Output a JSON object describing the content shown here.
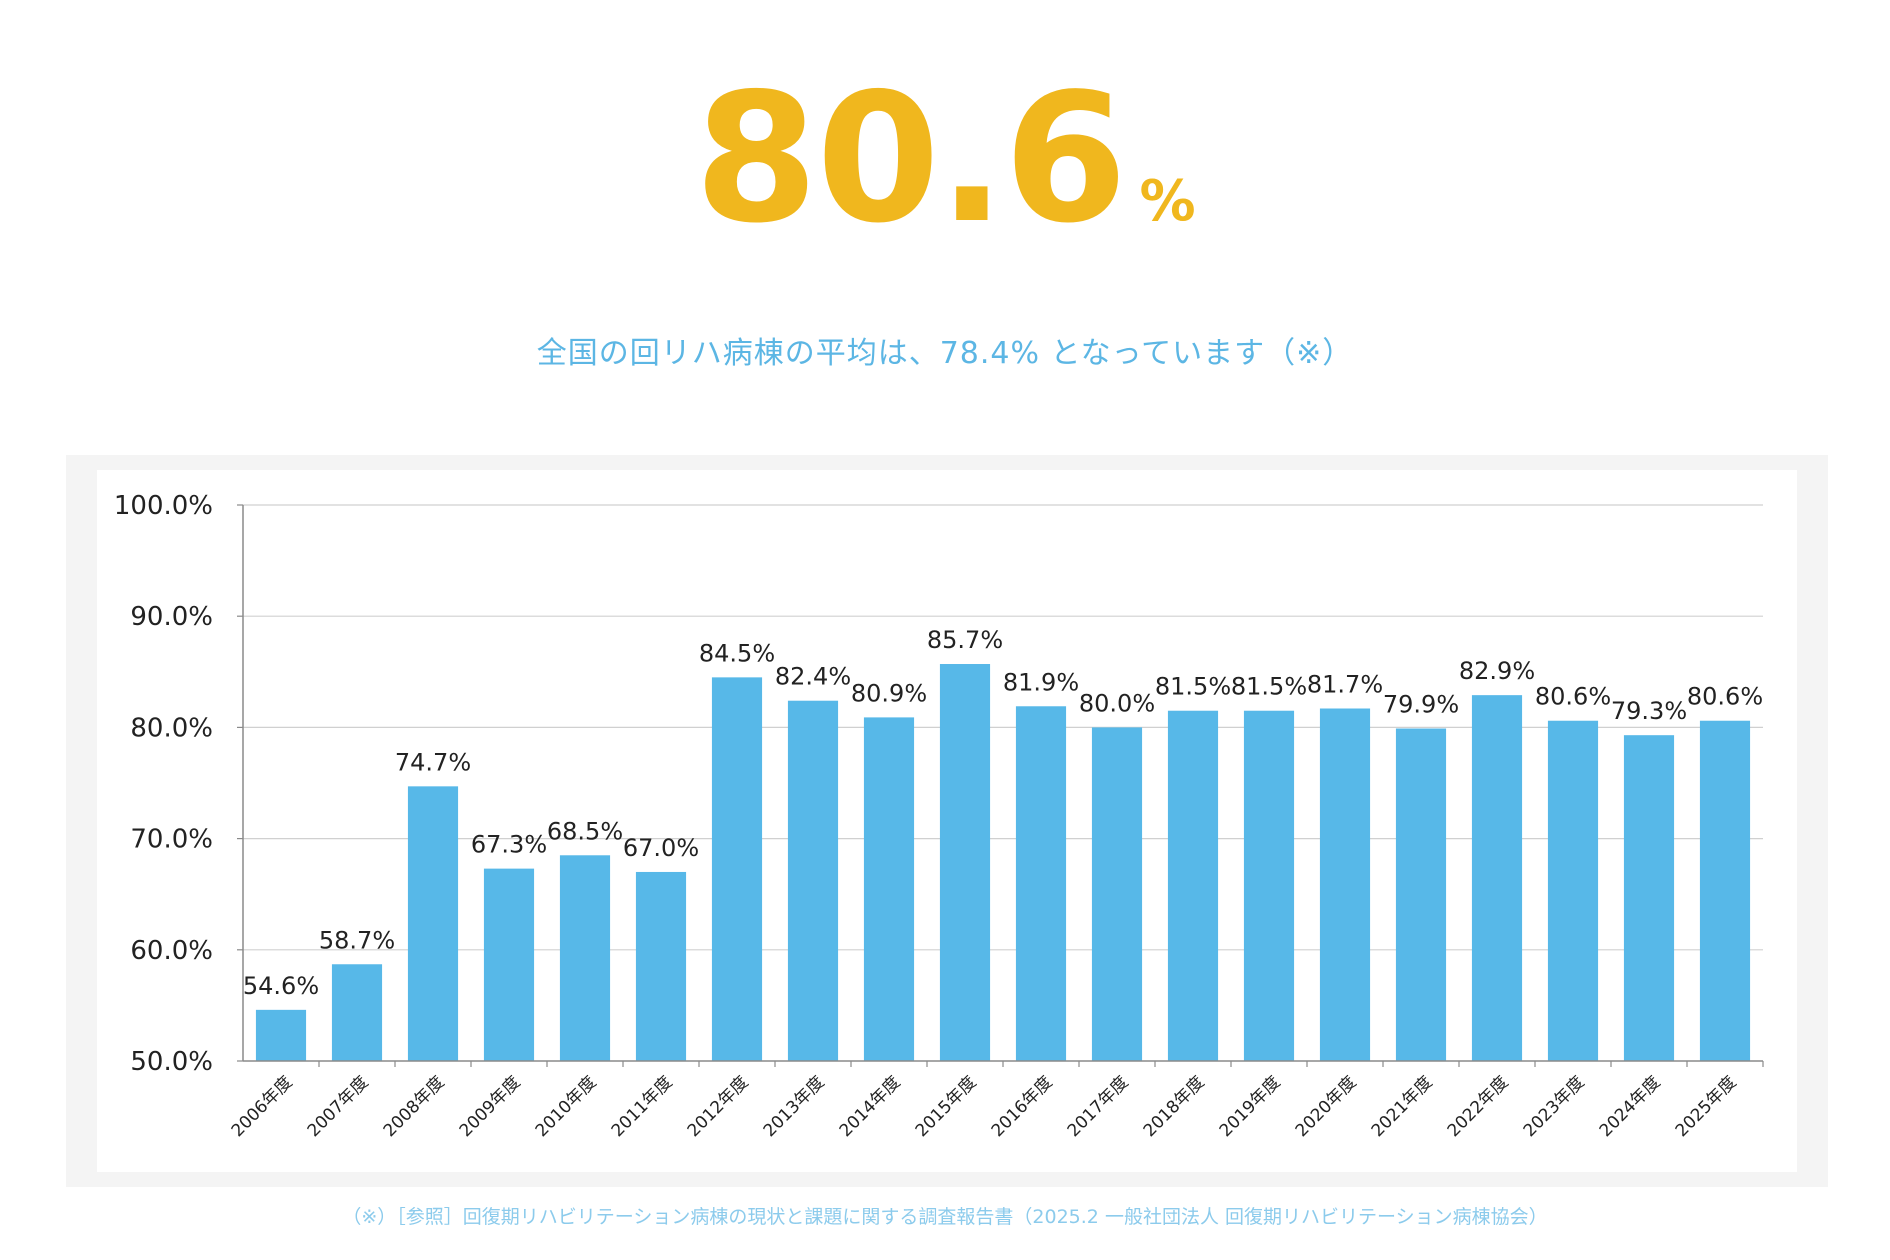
{
  "headline": {
    "value": "80.6",
    "unit": "%"
  },
  "subtitle": "全国の回リハ病棟の平均は、78.4% となっています（※）",
  "footnote": "（※）［参照］回復期リハビリテーション病棟の現状と課題に関する調査報告書（2025.2 一般社団法人 回復期リハビリテーション病棟協会）",
  "colors": {
    "accent": "#F0B71E",
    "bar": "#57B8E8",
    "subtitle": "#5CB6E4",
    "footnote": "#8CCBEC"
  },
  "chart_data": {
    "type": "bar",
    "title": "",
    "xlabel": "",
    "ylabel": "",
    "ylim": [
      50,
      100
    ],
    "yticks": [
      "100.0%",
      "90.0%",
      "80.0%",
      "70.0%",
      "60.0%",
      "50.0%"
    ],
    "ytick_values": [
      100,
      90,
      80,
      70,
      60,
      50
    ],
    "grid": true,
    "categories": [
      "2006年度",
      "2007年度",
      "2008年度",
      "2009年度",
      "2010年度",
      "2011年度",
      "2012年度",
      "2013年度",
      "2014年度",
      "2015年度",
      "2016年度",
      "2017年度",
      "2018年度",
      "2019年度",
      "2020年度",
      "2021年度",
      "2022年度",
      "2023年度",
      "2024年度",
      "2025年度"
    ],
    "values": [
      54.6,
      58.7,
      74.7,
      67.3,
      68.5,
      67.0,
      84.5,
      82.4,
      80.9,
      85.7,
      81.9,
      80.0,
      81.5,
      81.5,
      81.7,
      79.9,
      82.9,
      80.6,
      79.3,
      80.6
    ],
    "value_labels": [
      "54.6%",
      "58.7%",
      "74.7%",
      "67.3%",
      "68.5%",
      "67.0%",
      "84.5%",
      "82.4%",
      "80.9%",
      "85.7%",
      "81.9%",
      "80.0%",
      "81.5%",
      "81.5%",
      "81.7%",
      "79.9%",
      "82.9%",
      "80.6%",
      "79.3%",
      "80.6%"
    ]
  }
}
